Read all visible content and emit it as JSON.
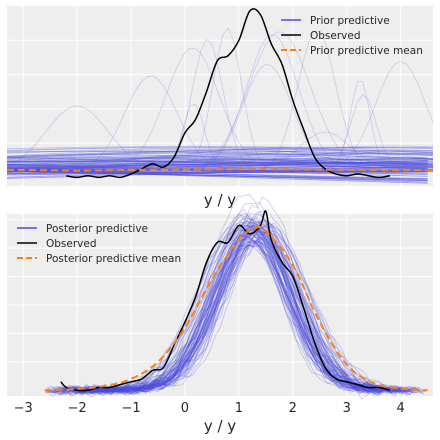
{
  "chart_data": [
    {
      "type": "line",
      "panel": "top",
      "xlabel": "y / y",
      "grid": true,
      "legend_placement": "top-right",
      "legend": [
        {
          "label": "Prior predictive",
          "color": "#4c4cdb",
          "style": "solid"
        },
        {
          "label": "Observed",
          "color": "#000000",
          "style": "solid"
        },
        {
          "label": "Prior predictive mean",
          "color": "#ff7f0e",
          "style": "dashed"
        }
      ],
      "observed": {
        "x": [
          -2.2,
          -2.0,
          -1.8,
          -1.6,
          -1.4,
          -1.2,
          -1.0,
          -0.8,
          -0.6,
          -0.4,
          -0.2,
          0.0,
          0.2,
          0.4,
          0.6,
          0.8,
          1.0,
          1.2,
          1.4,
          1.6,
          1.8,
          2.0,
          2.2,
          2.4,
          2.6,
          2.8,
          3.0,
          3.2,
          3.4,
          3.6,
          3.8
        ],
        "y": [
          0.01,
          0.0,
          0.01,
          0.0,
          0.01,
          0.0,
          0.02,
          0.05,
          0.08,
          0.06,
          0.12,
          0.26,
          0.34,
          0.5,
          0.68,
          0.71,
          0.8,
          0.97,
          0.95,
          0.78,
          0.66,
          0.45,
          0.28,
          0.12,
          0.05,
          0.02,
          0.01,
          0.02,
          0.01,
          0.0,
          0.01
        ]
      },
      "prior_mean": {
        "x": [
          -3.3,
          -2.0,
          -1.0,
          0.0,
          1.0,
          2.0,
          3.0,
          4.6
        ],
        "y": [
          0.045,
          0.04,
          0.044,
          0.047,
          0.048,
          0.047,
          0.044,
          0.042
        ]
      },
      "ylim": [
        -0.05,
        1.0
      ],
      "xlim": [
        -3.3,
        4.6
      ]
    },
    {
      "type": "line",
      "panel": "bottom",
      "xlabel": "y / y",
      "grid": true,
      "legend_placement": "top-left",
      "legend": [
        {
          "label": "Posterior predictive",
          "color": "#4c4cdb",
          "style": "solid"
        },
        {
          "label": "Observed",
          "color": "#000000",
          "style": "solid"
        },
        {
          "label": "Posterior predictive mean",
          "color": "#ff7f0e",
          "style": "dashed"
        }
      ],
      "xticks": [
        -3,
        -2,
        -1,
        0,
        1,
        2,
        3,
        4
      ],
      "xlim": [
        -3.3,
        4.6
      ],
      "ylim": [
        -0.02,
        0.62
      ],
      "observed": {
        "x": [
          -2.3,
          -2.2,
          -2.0,
          -1.8,
          -1.6,
          -1.4,
          -1.2,
          -1.0,
          -0.8,
          -0.6,
          -0.4,
          -0.2,
          0.0,
          0.2,
          0.4,
          0.6,
          0.8,
          1.0,
          1.2,
          1.4,
          1.5,
          1.6,
          1.8,
          2.0,
          2.2,
          2.4,
          2.6,
          2.8,
          3.0,
          3.2,
          3.4,
          3.6,
          3.8
        ],
        "y": [
          0.03,
          0.01,
          0.0,
          0.0,
          0.01,
          0.01,
          0.02,
          0.03,
          0.04,
          0.07,
          0.08,
          0.16,
          0.24,
          0.33,
          0.45,
          0.52,
          0.52,
          0.58,
          0.55,
          0.58,
          0.63,
          0.53,
          0.45,
          0.4,
          0.29,
          0.17,
          0.08,
          0.04,
          0.03,
          0.02,
          0.01,
          0.01,
          0.0
        ]
      },
      "posterior_mean": {
        "x": [
          -2.6,
          -2.0,
          -1.5,
          -1.0,
          -0.5,
          0.0,
          0.5,
          1.0,
          1.3,
          1.5,
          2.0,
          2.5,
          3.0,
          3.5,
          4.0,
          4.5
        ],
        "y": [
          0.0,
          0.005,
          0.015,
          0.04,
          0.1,
          0.22,
          0.39,
          0.53,
          0.57,
          0.56,
          0.44,
          0.24,
          0.09,
          0.025,
          0.006,
          0.0
        ]
      }
    }
  ]
}
